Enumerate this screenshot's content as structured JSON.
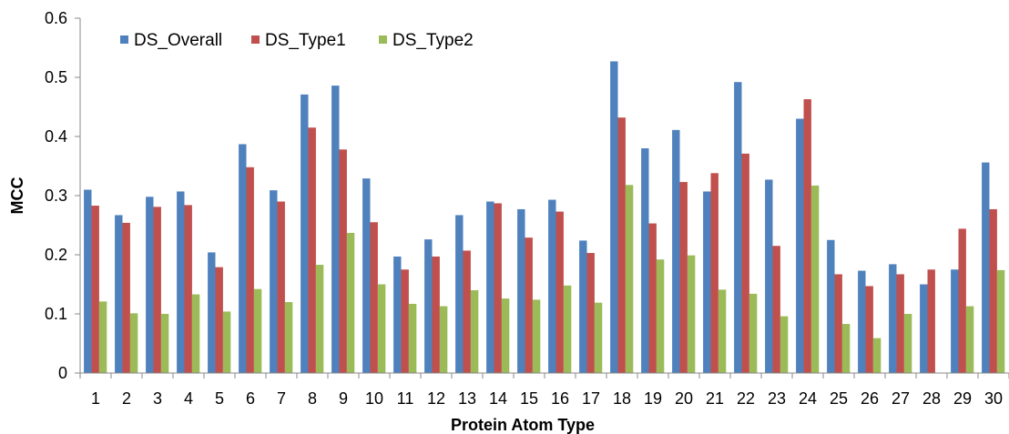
{
  "chart_data": {
    "type": "bar",
    "title": "",
    "xlabel": "Protein Atom Type",
    "ylabel": "MCC",
    "ylim": [
      0,
      0.6
    ],
    "yticks": [
      "0",
      "0.1",
      "0.2",
      "0.3",
      "0.4",
      "0.5",
      "0.6"
    ],
    "categories": [
      "1",
      "2",
      "3",
      "4",
      "5",
      "6",
      "7",
      "8",
      "9",
      "10",
      "11",
      "12",
      "13",
      "14",
      "15",
      "16",
      "17",
      "18",
      "19",
      "20",
      "21",
      "22",
      "23",
      "24",
      "25",
      "26",
      "27",
      "28",
      "29",
      "30"
    ],
    "grid": false,
    "legend_position": "top-left",
    "series": [
      {
        "name": "DS_Overall",
        "color": "#4F81BD",
        "values": [
          0.31,
          0.267,
          0.298,
          0.307,
          0.204,
          0.387,
          0.309,
          0.471,
          0.486,
          0.329,
          0.197,
          0.226,
          0.267,
          0.29,
          0.277,
          0.293,
          0.224,
          0.527,
          0.38,
          0.411,
          0.307,
          0.492,
          0.327,
          0.43,
          0.225,
          0.173,
          0.184,
          0.15,
          0.175,
          0.356
        ]
      },
      {
        "name": "DS_Type1",
        "color": "#C0504D",
        "values": [
          0.283,
          0.254,
          0.281,
          0.284,
          0.179,
          0.348,
          0.29,
          0.415,
          0.378,
          0.255,
          0.175,
          0.197,
          0.207,
          0.287,
          0.229,
          0.273,
          0.203,
          0.432,
          0.253,
          0.323,
          0.338,
          0.371,
          0.215,
          0.463,
          0.167,
          0.147,
          0.167,
          0.175,
          0.244,
          0.277
        ]
      },
      {
        "name": "DS_Type2",
        "color": "#9BBB59",
        "values": [
          0.121,
          0.101,
          0.1,
          0.133,
          0.104,
          0.142,
          0.12,
          0.183,
          0.237,
          0.15,
          0.117,
          0.113,
          0.14,
          0.126,
          0.124,
          0.148,
          0.119,
          0.318,
          0.192,
          0.199,
          0.141,
          0.134,
          0.096,
          0.317,
          0.083,
          0.059,
          0.1,
          0,
          0.113,
          0.174
        ]
      }
    ]
  }
}
